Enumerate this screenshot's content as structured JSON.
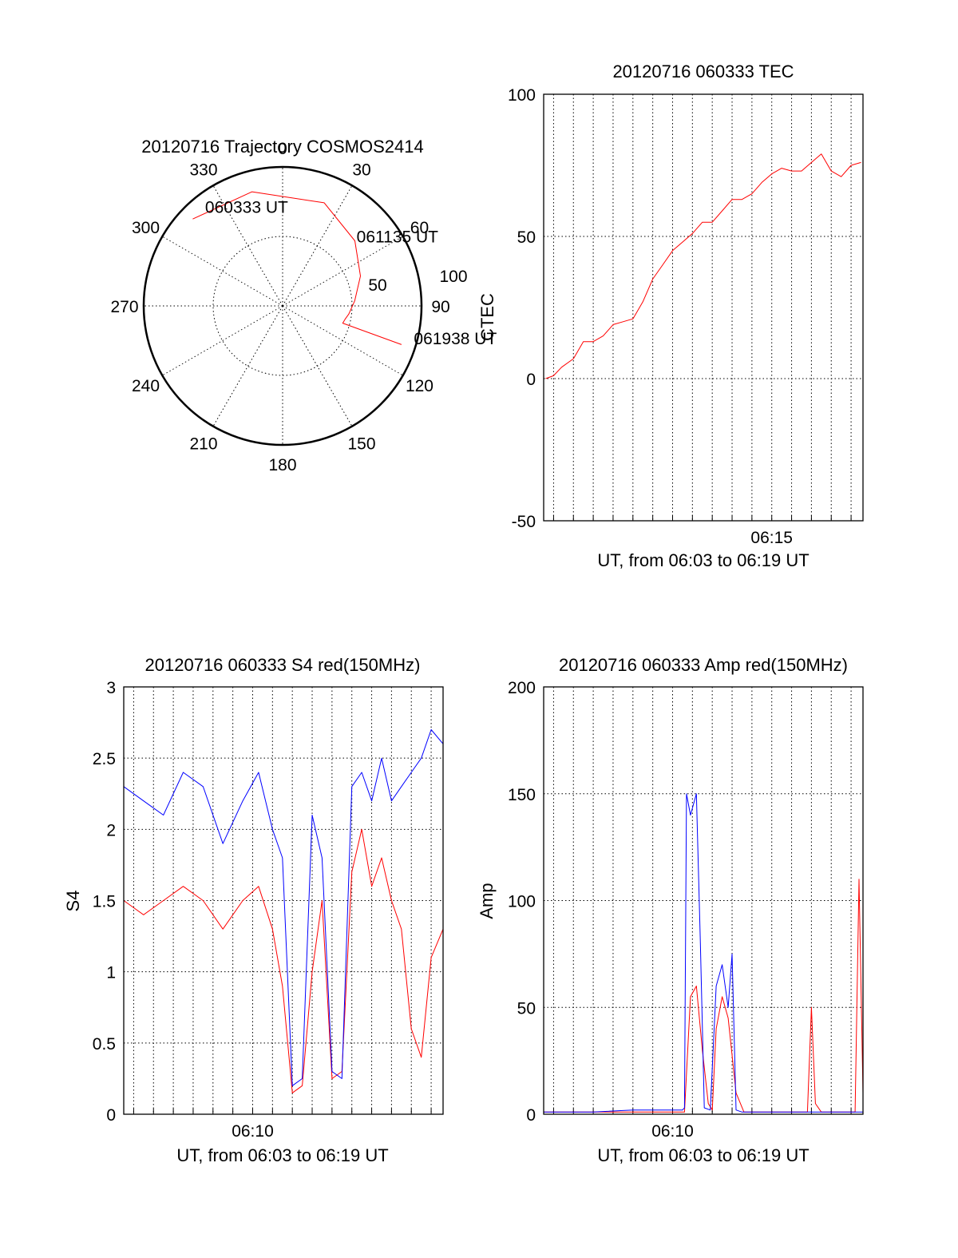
{
  "colors": {
    "red": "#ff0000",
    "blue": "#0000ff",
    "axis": "#000000"
  },
  "chart_data": [
    {
      "type": "polar",
      "title": "20120716 Trajectory COSMOS2414",
      "radius_labels": [
        "50",
        "100"
      ],
      "azimuth_labels": [
        "0",
        "30",
        "60",
        "90",
        "120",
        "150",
        "180",
        "210",
        "240",
        "270",
        "300",
        "330"
      ],
      "trajectory": {
        "color": "#ff0000",
        "points": [
          [
            314,
            90
          ],
          [
            345,
            85
          ],
          [
            22,
            80
          ],
          [
            48,
            70
          ],
          [
            69,
            60
          ],
          [
            86,
            52
          ],
          [
            97,
            48
          ],
          [
            102,
            46
          ],
          [
            106,
            45
          ],
          [
            108,
            90
          ]
        ]
      },
      "annotations": [
        {
          "text": "060333 UT",
          "az": 320,
          "r": 85
        },
        {
          "text": "061135 UT",
          "az": 51,
          "r": 70
        },
        {
          "text": "061938 UT",
          "az": 107,
          "r": 100
        }
      ]
    },
    {
      "type": "line",
      "title": "20120716 060333 TEC",
      "ylabel": "CTEC",
      "xlabel": "UT, from 06:03 to 06:19 UT",
      "xtick_label": "06:15",
      "xtick_min": 15,
      "xlim": [
        3.5,
        19.6
      ],
      "ylim": [
        -50,
        100
      ],
      "yticks": [
        "-50",
        "0",
        "50",
        "100"
      ],
      "grid": true,
      "series": [
        {
          "color": "#ff0000",
          "x": [
            3.6,
            4.0,
            4.4,
            5.0,
            5.5,
            6.0,
            6.5,
            7.0,
            7.5,
            8.0,
            8.5,
            9.0,
            9.5,
            10.0,
            10.5,
            11.0,
            11.5,
            12.0,
            12.5,
            13.0,
            13.5,
            14.0,
            14.5,
            15.0,
            15.5,
            16.0,
            16.5,
            17.0,
            17.5,
            18.0,
            18.5,
            19.0,
            19.5
          ],
          "y": [
            0,
            1,
            4,
            7,
            13,
            13,
            15,
            19,
            20,
            21,
            27,
            35,
            40,
            45,
            48,
            51,
            55,
            55,
            59,
            63,
            63,
            65,
            69,
            72,
            74,
            73,
            73,
            76,
            79,
            73,
            71,
            75,
            76
          ]
        }
      ]
    },
    {
      "type": "line",
      "title": "20120716 060333 S4 red(150MHz)",
      "ylabel": "S4",
      "xlabel": "UT, from 06:03 to 06:19 UT",
      "xtick_label": "06:10",
      "xtick_min": 10,
      "xlim": [
        3.5,
        19.6
      ],
      "ylim": [
        0,
        3
      ],
      "yticks": [
        "0",
        "0.5",
        "1",
        "1.5",
        "2",
        "2.5",
        "3"
      ],
      "grid": true,
      "series": [
        {
          "color": "#ff0000",
          "x": [
            3.5,
            4.5,
            5.5,
            6.5,
            7.5,
            8.5,
            9.5,
            10.3,
            11.0,
            11.5,
            12.0,
            12.5,
            13.0,
            13.5,
            14.0,
            14.5,
            15.0,
            15.5,
            16.0,
            16.5,
            17.0,
            17.5,
            18.0,
            18.5,
            19.0,
            19.6
          ],
          "y": [
            1.5,
            1.4,
            1.5,
            1.6,
            1.5,
            1.3,
            1.5,
            1.6,
            1.3,
            0.9,
            0.15,
            0.2,
            1.0,
            1.5,
            0.25,
            0.3,
            1.7,
            2.0,
            1.6,
            1.8,
            1.5,
            1.3,
            0.6,
            0.4,
            1.1,
            1.3
          ]
        },
        {
          "color": "#0000ff",
          "x": [
            3.5,
            4.5,
            5.5,
            6.5,
            7.5,
            8.5,
            9.5,
            10.3,
            11.0,
            11.5,
            12.0,
            12.5,
            13.0,
            13.5,
            14.0,
            14.5,
            15.0,
            15.5,
            16.0,
            16.5,
            17.0,
            17.5,
            18.0,
            18.5,
            19.0,
            19.6
          ],
          "y": [
            2.3,
            2.2,
            2.1,
            2.4,
            2.3,
            1.9,
            2.2,
            2.4,
            2.0,
            1.8,
            0.2,
            0.25,
            2.1,
            1.8,
            0.3,
            0.25,
            2.3,
            2.4,
            2.2,
            2.5,
            2.2,
            2.3,
            2.4,
            2.5,
            2.7,
            2.6
          ]
        }
      ]
    },
    {
      "type": "line",
      "title": "20120716 060333 Amp red(150MHz)",
      "ylabel": "Amp",
      "xlabel": "UT, from 06:03 to 06:19 UT",
      "xtick_label": "06:10",
      "xtick_min": 10,
      "xlim": [
        3.5,
        19.6
      ],
      "ylim": [
        0,
        200
      ],
      "yticks": [
        "0",
        "50",
        "100",
        "150",
        "200"
      ],
      "grid": true,
      "series": [
        {
          "color": "#ff0000",
          "x": [
            3.5,
            10.0,
            10.6,
            10.9,
            11.2,
            11.5,
            11.8,
            12.0,
            12.2,
            12.5,
            12.8,
            13.2,
            13.6,
            14.5,
            16.0,
            16.8,
            17.0,
            17.2,
            17.5,
            18.5,
            19.2,
            19.4,
            19.6
          ],
          "y": [
            1,
            1,
            1,
            55,
            60,
            30,
            5,
            2,
            40,
            55,
            45,
            10,
            1,
            1,
            1,
            1,
            50,
            5,
            1,
            1,
            1,
            110,
            10
          ]
        },
        {
          "color": "#0000ff",
          "x": [
            3.5,
            6.0,
            8.0,
            10.0,
            10.5,
            10.6,
            10.7,
            10.9,
            11.2,
            11.4,
            11.6,
            11.9,
            12.2,
            12.5,
            12.8,
            13.0,
            13.2,
            13.5,
            15.0,
            17.0,
            18.5,
            19.6
          ],
          "y": [
            1,
            1,
            2,
            2,
            2,
            3,
            150,
            140,
            150,
            80,
            3,
            2,
            60,
            70,
            50,
            75,
            2,
            1,
            1,
            1,
            1,
            1
          ]
        }
      ]
    }
  ]
}
